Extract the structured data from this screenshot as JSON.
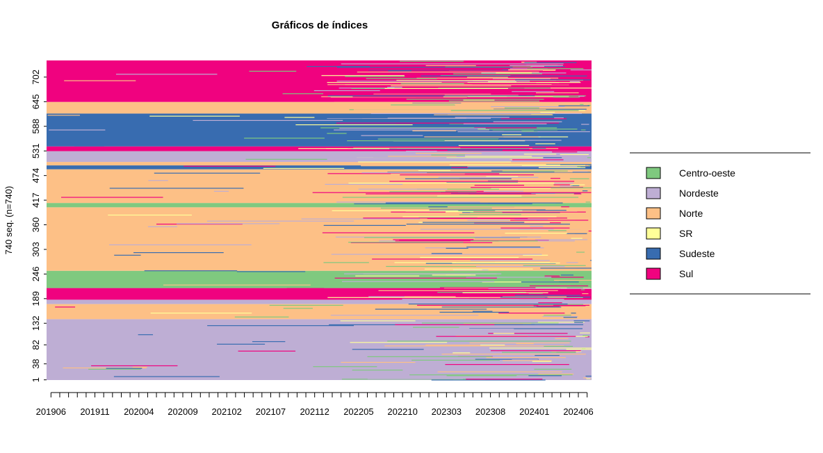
{
  "chart_data": {
    "type": "heatmap",
    "title": "Gráficos de índices",
    "ylabel": "740 seq. (n=740)",
    "xlabel": "",
    "n_sequences": 740,
    "x_start": "201906",
    "x_end": "202407",
    "x_tick_labels": [
      "201906",
      "201911",
      "202004",
      "202009",
      "202102",
      "202107",
      "202112",
      "202205",
      "202210",
      "202303",
      "202308",
      "202401",
      "202406"
    ],
    "y_tick_labels": [
      "1",
      "38",
      "82",
      "132",
      "189",
      "246",
      "303",
      "360",
      "417",
      "474",
      "531",
      "588",
      "645",
      "702"
    ],
    "legend": [
      {
        "label": "Centro-oeste",
        "color": "#7fc97f"
      },
      {
        "label": "Nordeste",
        "color": "#beaed4"
      },
      {
        "label": "Norte",
        "color": "#fdc086"
      },
      {
        "label": "SR",
        "color": "#ffff99"
      },
      {
        "label": "Sudeste",
        "color": "#386cb0"
      },
      {
        "label": "Sul",
        "color": "#f0027f"
      }
    ],
    "blocks_by_sequence_index": [
      {
        "from": 1,
        "to": 141,
        "state": "Nordeste"
      },
      {
        "from": 142,
        "to": 176,
        "state": "Norte"
      },
      {
        "from": 177,
        "to": 186,
        "state": "Nordeste"
      },
      {
        "from": 187,
        "to": 213,
        "state": "Sul"
      },
      {
        "from": 214,
        "to": 253,
        "state": "Centro-oeste"
      },
      {
        "from": 254,
        "to": 400,
        "state": "Norte"
      },
      {
        "from": 401,
        "to": 410,
        "state": "Centro-oeste"
      },
      {
        "from": 411,
        "to": 488,
        "state": "Norte"
      },
      {
        "from": 489,
        "to": 497,
        "state": "Sudeste"
      },
      {
        "from": 498,
        "to": 505,
        "state": "Norte"
      },
      {
        "from": 506,
        "to": 530,
        "state": "Nordeste"
      },
      {
        "from": 531,
        "to": 541,
        "state": "Sul"
      },
      {
        "from": 542,
        "to": 617,
        "state": "Sudeste"
      },
      {
        "from": 618,
        "to": 644,
        "state": "Norte"
      },
      {
        "from": 645,
        "to": 740,
        "state": "Sul"
      }
    ]
  }
}
